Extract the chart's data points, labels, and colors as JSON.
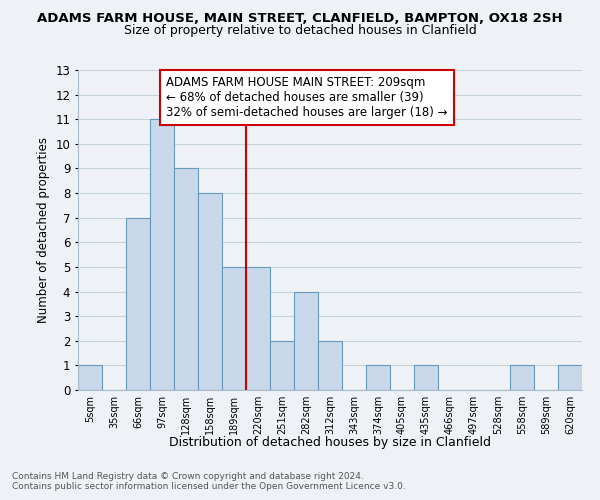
{
  "title": "ADAMS FARM HOUSE, MAIN STREET, CLANFIELD, BAMPTON, OX18 2SH",
  "subtitle": "Size of property relative to detached houses in Clanfield",
  "xlabel": "Distribution of detached houses by size in Clanfield",
  "ylabel": "Number of detached properties",
  "footnote1": "Contains HM Land Registry data © Crown copyright and database right 2024.",
  "footnote2": "Contains public sector information licensed under the Open Government Licence v3.0.",
  "bin_labels": [
    "5sqm",
    "35sqm",
    "66sqm",
    "97sqm",
    "128sqm",
    "158sqm",
    "189sqm",
    "220sqm",
    "251sqm",
    "282sqm",
    "312sqm",
    "343sqm",
    "374sqm",
    "405sqm",
    "435sqm",
    "466sqm",
    "497sqm",
    "528sqm",
    "558sqm",
    "589sqm",
    "620sqm"
  ],
  "bar_values": [
    1,
    0,
    7,
    11,
    9,
    8,
    5,
    5,
    2,
    4,
    2,
    0,
    1,
    0,
    1,
    0,
    0,
    0,
    1,
    0,
    1
  ],
  "bar_color": "#c8d8ea",
  "bar_edge_color": "#6699bb",
  "reference_line_x": 6.5,
  "reference_line_color": "#cc0000",
  "ylim": [
    0,
    13
  ],
  "yticks": [
    0,
    1,
    2,
    3,
    4,
    5,
    6,
    7,
    8,
    9,
    10,
    11,
    12,
    13
  ],
  "annotation_title": "ADAMS FARM HOUSE MAIN STREET: 209sqm",
  "annotation_line1": "← 68% of detached houses are smaller (39)",
  "annotation_line2": "32% of semi-detached houses are larger (18) →",
  "annotation_box_color": "#ffffff",
  "annotation_box_edge": "#cc0000",
  "grid_color": "#c8d4dc",
  "bg_color": "#eef2f6",
  "title_fontsize": 9.5,
  "subtitle_fontsize": 9.0
}
